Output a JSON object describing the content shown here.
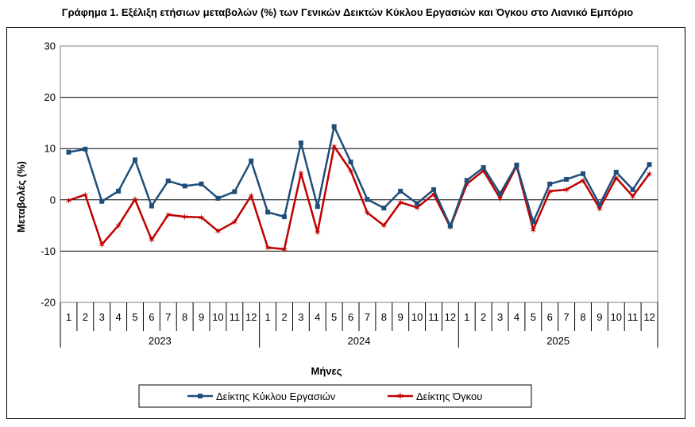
{
  "chart_data": {
    "type": "line",
    "title": "Γράφημα 1. Εξέλιξη ετήσιων μεταβολών (%) των Γενικών Δεικτών Κύκλου Εργασιών και Όγκου στο Λιανικό Εμπόριο",
    "xlabel": "Μήνες",
    "ylabel": "Μεταβολές (%)",
    "ylim": [
      -20,
      30
    ],
    "yticks": [
      "30",
      "20",
      "10",
      "0",
      "-10",
      "-20"
    ],
    "ytick_values": [
      30,
      20,
      10,
      0,
      -10,
      -20
    ],
    "grid": "horizontal",
    "legend_position": "bottom",
    "years": [
      "2023",
      "2024",
      "2025"
    ],
    "months": [
      "1",
      "2",
      "3",
      "4",
      "5",
      "6",
      "7",
      "8",
      "9",
      "10",
      "11",
      "12"
    ],
    "series": [
      {
        "name": "Δείκτης Κύκλου Εργασιών",
        "color": "#1f4e79",
        "marker": "square",
        "values": [
          9.3,
          9.9,
          -0.3,
          1.7,
          7.8,
          -1.2,
          3.7,
          2.7,
          3.1,
          0.3,
          1.6,
          7.6,
          -2.4,
          -3.3,
          11.1,
          -1.3,
          14.3,
          7.4,
          0.1,
          -1.6,
          1.7,
          -0.7,
          2.0,
          -5.1,
          3.8,
          6.3,
          1.2,
          6.8,
          -4.3,
          3.1,
          4.0,
          5.1,
          -0.9,
          5.4,
          2.0,
          6.9
        ]
      },
      {
        "name": "Δείκτης Όγκου",
        "color": "#c00000",
        "marker": "star",
        "values": [
          -0.1,
          1.0,
          -8.7,
          -5.0,
          0.1,
          -7.8,
          -2.9,
          -3.3,
          -3.4,
          -6.1,
          -4.3,
          0.8,
          -9.3,
          -9.6,
          5.2,
          -6.3,
          10.4,
          5.7,
          -2.5,
          -5.0,
          -0.5,
          -1.5,
          1.1,
          -5.3,
          3.1,
          5.7,
          0.3,
          6.6,
          -5.8,
          1.7,
          2.0,
          3.8,
          -1.7,
          4.3,
          0.7,
          5.1
        ]
      }
    ]
  }
}
